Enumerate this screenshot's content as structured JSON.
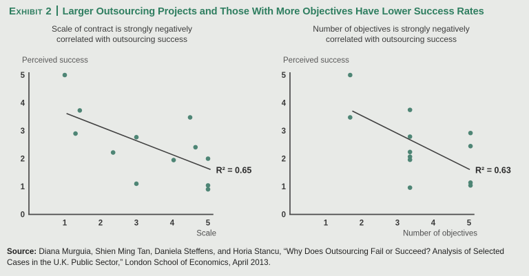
{
  "header": {
    "exhibit_label": "Exhibit 2",
    "title": "Larger Outsourcing Projects and Those With More Objectives Have Lower Success Rates"
  },
  "colors": {
    "background": "#e8eae7",
    "accent_green": "#2f7e60",
    "dot": "#4e8575",
    "axis": "#4a4a4a",
    "trendline": "#404040",
    "text_dark": "#3c3c3c"
  },
  "chart_data": [
    {
      "type": "scatter",
      "subtitle_line1": "Scale of contract is strongly negatively",
      "subtitle_line2": "correlated with outsourcing success",
      "ylabel": "Perceived success",
      "xlabel": "Scale",
      "xlim": [
        0,
        5.2
      ],
      "ylim": [
        0,
        5
      ],
      "x_ticks": [
        1,
        2,
        3,
        4,
        5
      ],
      "y_ticks": [
        0,
        1,
        2,
        3,
        4,
        5
      ],
      "grid": false,
      "points": [
        [
          1.0,
          5.0
        ],
        [
          1.3,
          2.9
        ],
        [
          1.42,
          3.73
        ],
        [
          2.35,
          2.22
        ],
        [
          3.0,
          2.77
        ],
        [
          3.0,
          1.1
        ],
        [
          4.04,
          1.95
        ],
        [
          4.5,
          3.48
        ],
        [
          4.65,
          2.41
        ],
        [
          5.0,
          2.0
        ],
        [
          5.0,
          1.04
        ],
        [
          5.0,
          0.9
        ]
      ],
      "trendline": {
        "x1": 1.05,
        "y1": 3.62,
        "x2": 5.07,
        "y2": 1.61
      },
      "r_squared_label": "R² = 0.65",
      "r_squared_value": 0.65
    },
    {
      "type": "scatter",
      "subtitle_line1": "Number of objectives is strongly negatively",
      "subtitle_line2": "correlated with outsourcing success",
      "ylabel": "Perceived success",
      "xlabel": "Number of objectives",
      "xlim": [
        0,
        5.2
      ],
      "ylim": [
        0,
        5
      ],
      "x_ticks": [
        1,
        2,
        3,
        4,
        5
      ],
      "y_ticks": [
        0,
        1,
        2,
        3,
        4,
        5
      ],
      "grid": false,
      "points": [
        [
          1.68,
          5.0
        ],
        [
          1.68,
          3.48
        ],
        [
          3.35,
          3.75
        ],
        [
          3.35,
          2.79
        ],
        [
          3.35,
          2.24
        ],
        [
          3.35,
          2.07
        ],
        [
          3.35,
          1.96
        ],
        [
          3.35,
          0.96
        ],
        [
          5.04,
          2.92
        ],
        [
          5.04,
          2.45
        ],
        [
          5.04,
          1.14
        ],
        [
          5.04,
          1.04
        ]
      ],
      "trendline": {
        "x1": 1.74,
        "y1": 3.71,
        "x2": 5.02,
        "y2": 1.61
      },
      "r_squared_label": "R² = 0.63",
      "r_squared_value": 0.63
    }
  ],
  "footer": {
    "source_label": "Source:",
    "source_text": " Diana Murguia, Shien Ming Tan, Daniela Steffens, and Horia Stancu, “Why Does Outsourcing Fail or Succeed? Analysis of Selected Cases in the U.K. Public Sector,” London School of Economics, April 2013."
  }
}
